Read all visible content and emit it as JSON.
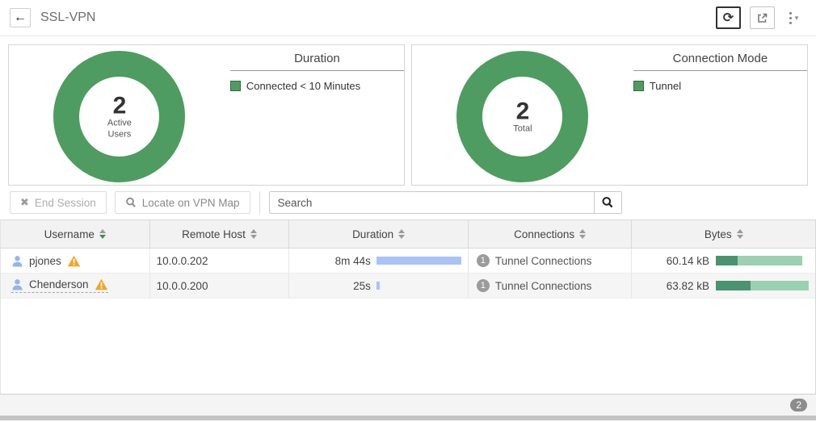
{
  "header": {
    "title": "SSL-VPN"
  },
  "icons": {
    "back": "←",
    "refresh": "⟳",
    "menu_caret": "▾",
    "end_session_x": "✖"
  },
  "colors": {
    "green": "#4e9c61",
    "duration_bar_blue": "#a9c3f7",
    "bytes_sent_dark_green": "#4a9370",
    "bytes_received_light_green": "#9bd0b2",
    "warning_orange": "#f5a623",
    "user_icon_blue": "#92b4f0"
  },
  "chart_data": [
    {
      "type": "pie",
      "title": "Duration",
      "categories": [
        "Connected < 10 Minutes"
      ],
      "values": [
        2
      ],
      "colors": [
        "#4e9c61"
      ],
      "center_value": "2",
      "center_label": "Active Users",
      "legend_position": "right"
    },
    {
      "type": "pie",
      "title": "Connection Mode",
      "categories": [
        "Tunnel"
      ],
      "values": [
        2
      ],
      "colors": [
        "#4e9c61"
      ],
      "center_value": "2",
      "center_label": "Total",
      "legend_position": "right"
    }
  ],
  "charts": [
    {
      "center_value": "2",
      "center_label": "Active Users",
      "legend_title": "Duration",
      "legend_item": "Connected < 10 Minutes"
    },
    {
      "center_value": "2",
      "center_label": "Total",
      "legend_title": "Connection Mode",
      "legend_item": "Tunnel"
    }
  ],
  "toolbar": {
    "end_session_label": "End Session",
    "locate_label": "Locate on VPN Map",
    "search_placeholder": "Search"
  },
  "table": {
    "columns": [
      {
        "label": "Username",
        "sort": "desc"
      },
      {
        "label": "Remote Host",
        "sort": ""
      },
      {
        "label": "Duration",
        "sort": ""
      },
      {
        "label": "Connections",
        "sort": ""
      },
      {
        "label": "Bytes",
        "sort": ""
      }
    ],
    "rows": [
      {
        "username": "pjones",
        "has_warning": true,
        "underlined": false,
        "remote_host": "10.0.0.202",
        "duration": "8m 44s",
        "duration_pct": 100,
        "connections_count": "1",
        "connections_label": "Tunnel Connections",
        "bytes": "60.14 kB",
        "bytes_total_pct": 93,
        "bytes_sent_pct": 25
      },
      {
        "username": "Chenderson",
        "has_warning": true,
        "underlined": true,
        "remote_host": "10.0.0.200",
        "duration": "25s",
        "duration_pct": 4,
        "connections_count": "1",
        "connections_label": "Tunnel Connections",
        "bytes": "63.82 kB",
        "bytes_total_pct": 100,
        "bytes_sent_pct": 37
      }
    ]
  },
  "footer": {
    "count": "2"
  }
}
